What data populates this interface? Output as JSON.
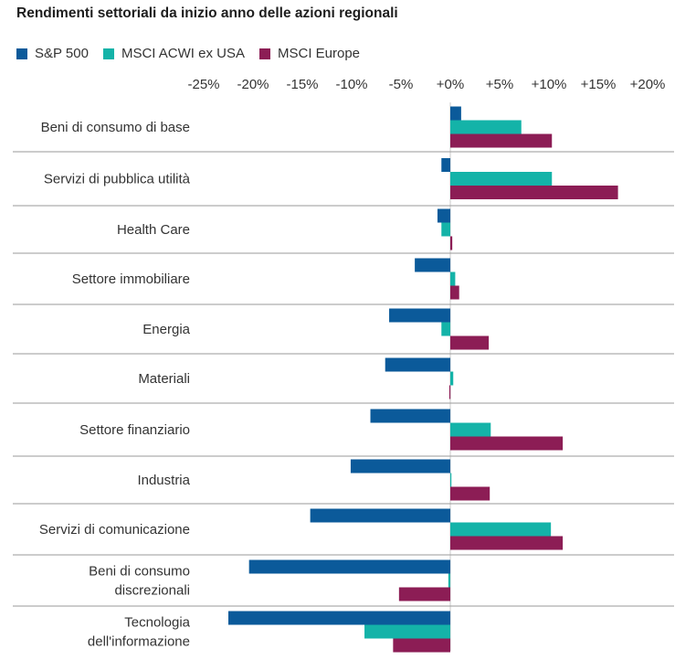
{
  "title": "Rendimenti settoriali da inizio anno delle azioni regionali",
  "colors": {
    "sp500": "#0b5a9a",
    "acwi": "#14b3a8",
    "europe": "#8c1d55",
    "divider": "#9a9a9a"
  },
  "chart_data": {
    "type": "bar",
    "orientation": "horizontal",
    "title": "Rendimenti settoriali da inizio anno delle azioni regionali",
    "xlim": [
      -25,
      20
    ],
    "xticks": [
      "-25%",
      "-20%",
      "-15%",
      "-10%",
      "-5%",
      "+0%",
      "+5%",
      "+10%",
      "+15%",
      "+20%"
    ],
    "xtick_values": [
      -25,
      -20,
      -15,
      -10,
      -5,
      0,
      5,
      10,
      15,
      20
    ],
    "legend_position": "top-left",
    "categories": [
      [
        "Beni di consumo di base"
      ],
      [
        "Servizi di pubblica utilità"
      ],
      [
        "Health Care"
      ],
      [
        "Settore immobiliare"
      ],
      [
        "Energia"
      ],
      [
        "Materiali"
      ],
      [
        "Settore finanziario"
      ],
      [
        "Industria"
      ],
      [
        "Servizi di comunicazione"
      ],
      [
        "Beni di consumo",
        "discrezionali"
      ],
      [
        "Tecnologia",
        "dell'informazione"
      ]
    ],
    "series": [
      {
        "name": "S&P 500",
        "color": "#0b5a9a",
        "values": [
          1.1,
          -0.9,
          -1.3,
          -3.6,
          -6.2,
          -6.6,
          -8.1,
          -10.1,
          -14.2,
          -20.4,
          -22.5
        ]
      },
      {
        "name": "MSCI ACWI ex USA",
        "color": "#14b3a8",
        "values": [
          7.2,
          10.3,
          -0.9,
          0.5,
          -0.9,
          0.3,
          4.1,
          0.1,
          10.2,
          -0.2,
          -8.7
        ]
      },
      {
        "name": "MSCI Europe",
        "color": "#8c1d55",
        "values": [
          10.3,
          17.0,
          0.2,
          0.9,
          3.9,
          -0.1,
          11.4,
          4.0,
          11.4,
          -5.2,
          -5.8
        ]
      }
    ]
  }
}
